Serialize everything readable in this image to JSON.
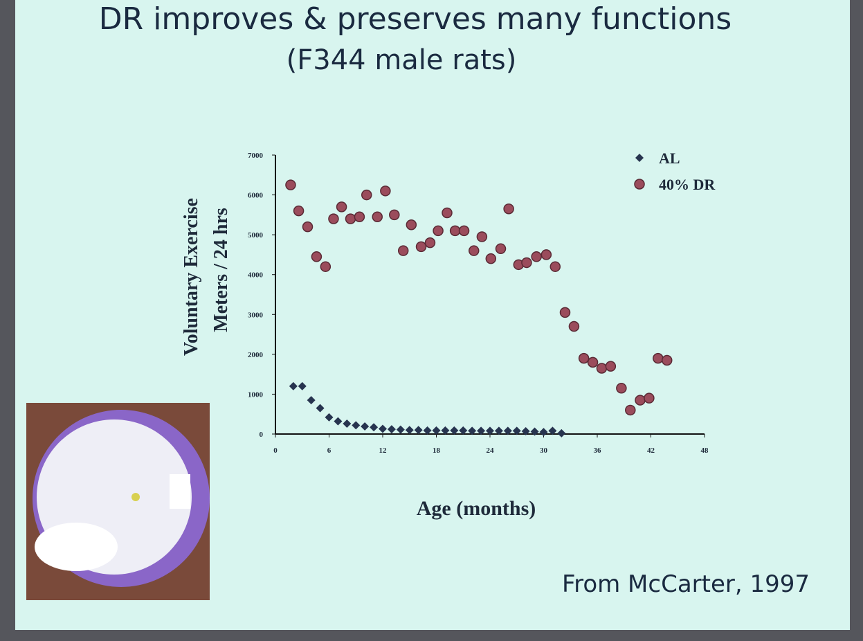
{
  "chart_data": {
    "type": "scatter",
    "title": "DR improves & preserves many functions",
    "subtitle": "(F344 male rats)",
    "xlabel": "Age (months)",
    "ylabel": [
      "Voluntary Exercise",
      "Meters / 24 hrs"
    ],
    "source": "From McCarter, 1997",
    "xlim": [
      0,
      48
    ],
    "ylim": [
      0,
      7000
    ],
    "xticks": [
      0,
      6,
      12,
      18,
      24,
      30,
      36,
      42,
      48
    ],
    "yticks": [
      0,
      1000,
      2000,
      3000,
      4000,
      5000,
      6000,
      7000
    ],
    "legend": "upper right",
    "grid": false,
    "series": [
      {
        "name": "AL",
        "color": "#27344f",
        "marker": "diamond",
        "x": [
          2,
          3,
          4,
          5,
          6,
          7,
          8,
          9,
          10,
          11,
          12,
          13,
          14,
          15,
          16,
          17,
          18,
          19,
          20,
          21,
          22,
          23,
          24,
          25,
          26,
          27,
          28,
          29,
          30,
          31,
          32
        ],
        "values": [
          1200,
          1200,
          850,
          650,
          420,
          320,
          260,
          220,
          190,
          170,
          130,
          120,
          110,
          100,
          100,
          90,
          90,
          90,
          90,
          90,
          80,
          80,
          80,
          80,
          80,
          80,
          70,
          60,
          50,
          80,
          20
        ]
      },
      {
        "name": "40% DR",
        "color": "#9b4c5c",
        "marker": "circle",
        "x": [
          1.7,
          2.6,
          3.6,
          4.6,
          5.6,
          6.5,
          7.4,
          8.4,
          9.4,
          10.2,
          11.4,
          12.3,
          13.3,
          14.3,
          15.2,
          16.3,
          17.3,
          18.2,
          19.2,
          20.1,
          21.1,
          22.2,
          23.1,
          24.1,
          25.2,
          26.1,
          27.2,
          28.1,
          29.2,
          30.3,
          31.3,
          32.4,
          33.4,
          34.5,
          35.5,
          36.5,
          37.5,
          38.7,
          39.7,
          40.8,
          41.8,
          42.8,
          43.8
        ],
        "values": [
          6250,
          5600,
          5200,
          4450,
          4200,
          5400,
          5700,
          5400,
          5450,
          6000,
          5450,
          6100,
          5500,
          4600,
          5250,
          4700,
          4800,
          5100,
          5550,
          5100,
          5100,
          4600,
          4950,
          4400,
          4650,
          5650,
          4250,
          4300,
          4450,
          4500,
          4200,
          3050,
          2700,
          1900,
          1800,
          1650,
          1700,
          1150,
          600,
          850,
          900,
          1900,
          1850
        ]
      }
    ]
  }
}
